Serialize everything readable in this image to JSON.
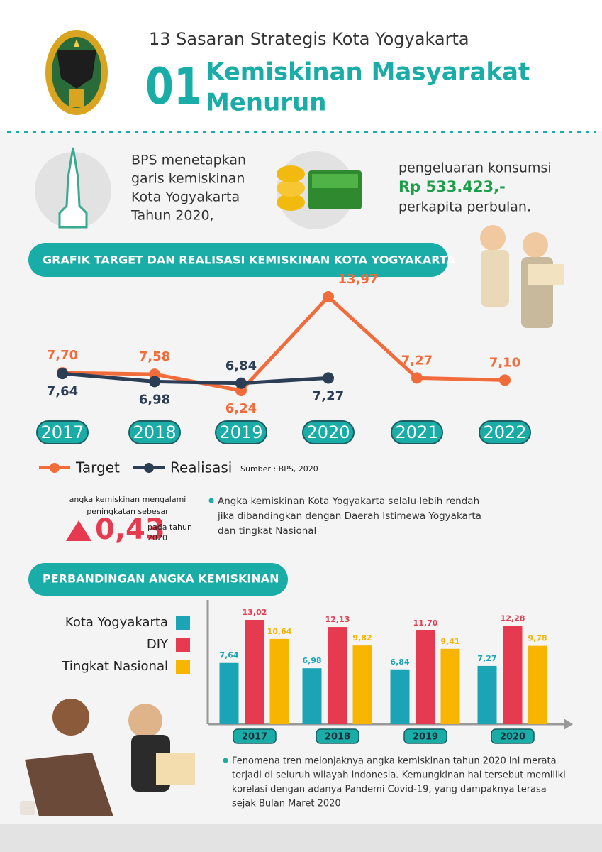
{
  "header": {
    "subtitle": "13 Sasaran Strategis Kota Yogyakarta",
    "number": "01",
    "title_lines": [
      "Kemiskinan Masyarakat",
      "Menurun"
    ]
  },
  "intro": {
    "left_lines": [
      "BPS menetapkan",
      "garis kemiskinan",
      "Kota Yogyakarta",
      "Tahun 2020,"
    ],
    "right_top": "pengeluaran konsumsi",
    "amount": "Rp 533.423,-",
    "right_bottom": "perkapita perbulan."
  },
  "chart_data": [
    {
      "type": "line",
      "title": "GRAFIK TARGET DAN REALISASI KEMISKINAN KOTA YOGYAKARTA",
      "categories": [
        "2017",
        "2018",
        "2019",
        "2020",
        "2021",
        "2022"
      ],
      "series": [
        {
          "name": "Target",
          "color": "#f26b3a",
          "values": [
            7.7,
            7.58,
            6.24,
            13.97,
            7.27,
            7.1
          ],
          "value_labels": [
            "7,70",
            "7,58",
            "6,24",
            "13,97",
            "7,27",
            "7,10"
          ]
        },
        {
          "name": "Realisasi",
          "color": "#2c3e55",
          "values": [
            7.64,
            6.98,
            6.84,
            7.27,
            null,
            null
          ],
          "value_labels": [
            "7,64",
            "6,98",
            "6,84",
            "7,27",
            null,
            null
          ]
        }
      ],
      "source": "Sumber : BPS, 2020"
    },
    {
      "type": "bar",
      "title": "PERBANDINGAN ANGKA KEMISKINAN",
      "categories": [
        "2017",
        "2018",
        "2019",
        "2020"
      ],
      "series": [
        {
          "name": "Kota Yogyakarta",
          "color": "#1ba3b6",
          "values": [
            7.64,
            6.98,
            6.84,
            7.27
          ],
          "value_labels": [
            "7,64",
            "6,98",
            "6,84",
            "7,27"
          ]
        },
        {
          "name": "DIY",
          "color": "#e63a50",
          "values": [
            13.02,
            12.13,
            11.7,
            12.28
          ],
          "value_labels": [
            "13,02",
            "12,13",
            "11,70",
            "12,28"
          ]
        },
        {
          "name": "Tingkat Nasional",
          "color": "#f7b500",
          "values": [
            10.64,
            9.82,
            9.41,
            9.78
          ],
          "value_labels": [
            "10,64",
            "9,82",
            "9,41",
            "9,78"
          ]
        }
      ]
    }
  ],
  "increase": {
    "lines": [
      "angka kemiskinan mengalami",
      "peningkatan sebesar"
    ],
    "value": "0,43",
    "year_lines": [
      "pada tahun",
      "2020"
    ]
  },
  "notes": [
    {
      "lines": [
        "Angka kemiskinan Kota Yogyakarta selalu lebih rendah",
        "jika dibandingkan dengan Daerah Istimewa Yogyakarta",
        "dan tingkat Nasional"
      ]
    },
    {
      "lines": [
        "Fenomena tren melonjaknya angka kemiskinan tahun 2020  ini merata",
        "terjadi di seluruh wilayah Indonesia. Kemungkinan hal tersebut memiliki",
        "korelasi dengan adanya Pandemi Covid-19, yang dampaknya terasa",
        "sejak Bulan Maret 2020"
      ]
    }
  ]
}
